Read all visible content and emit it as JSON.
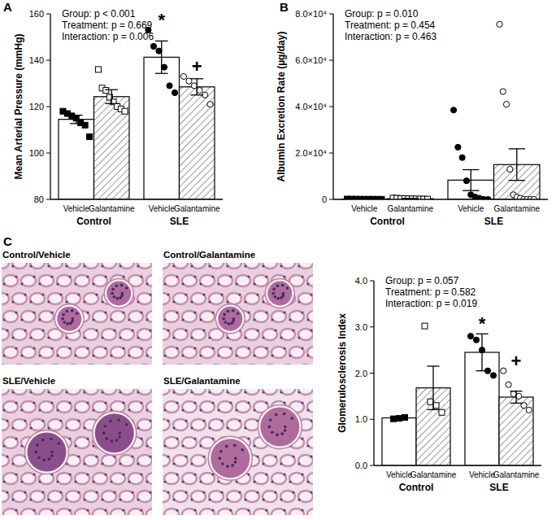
{
  "chart_data": [
    {
      "type": "bar",
      "panel": "A",
      "ylabel": "Mean Arterial Pressure (mmHg)",
      "annotations": [
        "Group: p < 0.001",
        "Treatment: p = 0.669",
        "Interaction: p = 0.006"
      ],
      "categories": [
        "Vehicle",
        "Galantamine",
        "Vehicle",
        "Galantamine"
      ],
      "groups": [
        "Control",
        "SLE"
      ],
      "values": [
        114.5,
        124.3,
        141.3,
        128.5
      ],
      "errors": [
        1.8,
        3,
        7,
        3.5
      ],
      "points": [
        [
          118,
          117,
          116,
          115,
          113,
          112,
          107
        ],
        [
          136,
          128,
          127,
          124,
          122,
          120,
          119,
          118
        ],
        [
          153,
          146,
          144,
          137,
          129,
          126
        ],
        [
          133,
          131,
          129,
          127,
          125,
          121
        ]
      ],
      "significance": [
        null,
        null,
        "*",
        "+"
      ],
      "ylim": [
        80,
        160
      ],
      "yticks": [
        80,
        100,
        120,
        140,
        160
      ]
    },
    {
      "type": "bar",
      "panel": "B",
      "ylabel": "Albumin Excretion Rate  (µg/day)",
      "annotations": [
        "Group: p = 0.010",
        "Treatment: p = 0.454",
        "Interaction: p = 0.463"
      ],
      "categories": [
        "Vehicle",
        "Galantamine",
        "Vehicle",
        "Galantamine"
      ],
      "groups": [
        "Control",
        "SLE"
      ],
      "values": [
        100,
        300,
        8300,
        15000
      ],
      "errors": [
        50,
        100,
        4500,
        6800
      ],
      "points": [
        [
          150,
          120,
          100,
          90,
          80,
          80,
          70,
          60,
          50
        ],
        [
          600,
          500,
          400,
          350,
          300,
          250,
          200,
          150,
          150,
          100
        ],
        [
          38500,
          22500,
          18000,
          8000,
          2000,
          1000,
          500,
          0,
          0
        ],
        [
          75500,
          46500,
          41000,
          13000,
          2000,
          1000,
          500,
          0,
          0,
          0,
          0
        ]
      ],
      "ylim": [
        0,
        80000
      ],
      "yticks": [
        0,
        {
          "value": 20000,
          "label": "2.0×10⁴"
        },
        {
          "value": 40000,
          "label": "4.0×10⁴"
        },
        {
          "value": 60000,
          "label": "6.0×10⁴"
        },
        {
          "value": 80000,
          "label": "8.0×10⁴"
        }
      ]
    },
    {
      "type": "bar",
      "panel": "C",
      "ylabel": "Glomerulosclerosis Index",
      "annotations": [
        "Group: p = 0.057",
        "Treatment: p = 0.582",
        "Interaction: p = 0.019"
      ],
      "categories": [
        "Vehicle",
        "Galantamine",
        "Vehicle",
        "Galantamine"
      ],
      "groups": [
        "Control",
        "SLE"
      ],
      "values": [
        1.03,
        1.68,
        2.45,
        1.48
      ],
      "errors": [
        0.02,
        0.47,
        0.4,
        0.13
      ],
      "points": [
        [
          1.01,
          1.02,
          1.04
        ],
        [
          3.02,
          1.38,
          1.3,
          1.15
        ],
        [
          2.8,
          2.72,
          2.5,
          2.05,
          1.95
        ],
        [
          2.05,
          1.75,
          1.55,
          1.5,
          1.3,
          1.2
        ]
      ],
      "significance": [
        null,
        null,
        "*",
        "+"
      ],
      "ylim": [
        0,
        4
      ],
      "yticks": [
        {
          "value": 0,
          "label": "0.0"
        },
        {
          "value": 1,
          "label": "1.0"
        },
        {
          "value": 2,
          "label": "2.0"
        },
        {
          "value": 3,
          "label": "3.0"
        },
        {
          "value": 4,
          "label": "4.0"
        }
      ]
    }
  ],
  "micrographs": {
    "titles": [
      "Control/Vehicle",
      "Control/Galantamine",
      "SLE/Vehicle",
      "SLE/Galantamine"
    ]
  }
}
